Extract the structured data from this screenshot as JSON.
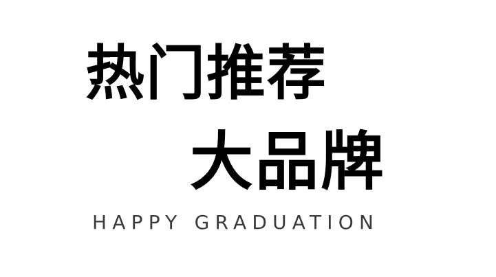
{
  "banner": {
    "title_line1": "热门推荐",
    "title_line2": "大品牌",
    "subtitle": "HAPPY GRADUATION"
  },
  "colors": {
    "background": "#ffffff",
    "title": "#000000",
    "subtitle": "#3a3a3a"
  }
}
